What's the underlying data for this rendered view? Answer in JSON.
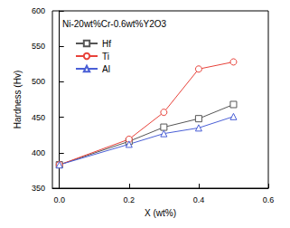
{
  "chart_data": {
    "type": "line",
    "title": "Ni-20wt%Cr-0.6wt%Y2O3",
    "x_label": "X (wt%)",
    "y_label": "Hardness (Hv)",
    "x": [
      0,
      0.2,
      0.3,
      0.4,
      0.5
    ],
    "series": [
      {
        "name": "Hf",
        "color": "#555555",
        "marker": "square",
        "line_style": "solid",
        "values": [
          383,
          416,
          436,
          448,
          468
        ]
      },
      {
        "name": "Ti",
        "color": "#e8423a",
        "marker": "circle",
        "line_style": "solid",
        "values": [
          383,
          419,
          457,
          518,
          528
        ]
      },
      {
        "name": "Al",
        "color": "#4a5fd6",
        "marker": "triangle",
        "line_style": "solid",
        "values": [
          383,
          412,
          427,
          435,
          451
        ]
      }
    ],
    "xlim": [
      -0.02,
      0.6
    ],
    "xticks": [
      {
        "value": 0,
        "label": "0.0"
      },
      0.2,
      0.4,
      0.6
    ],
    "ylim": [
      350,
      600
    ],
    "yticks": [
      350,
      400,
      450,
      500,
      550,
      600
    ],
    "grid": false,
    "legend": "upper left"
  }
}
